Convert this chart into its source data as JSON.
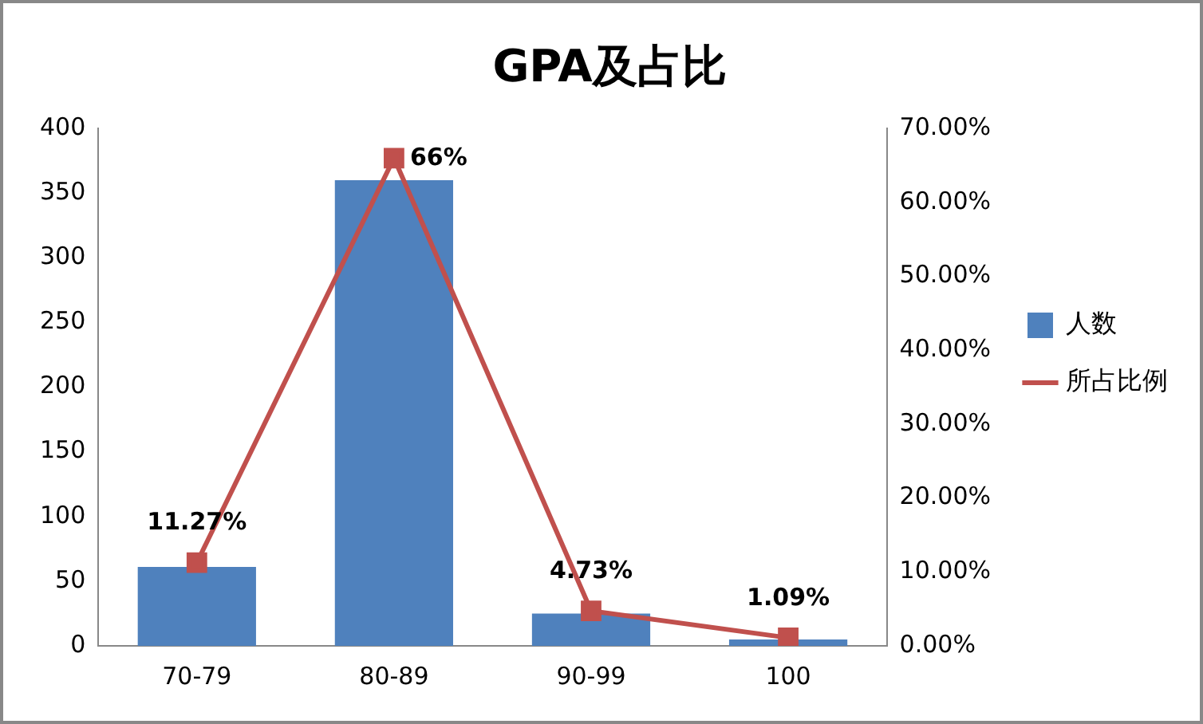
{
  "chart_data": {
    "type": "bar",
    "title": "GPA及占比",
    "categories": [
      "70-79",
      "80-89",
      "90-99",
      "100"
    ],
    "series": [
      {
        "name": "人数",
        "color": "#4f81bd",
        "values": [
          61,
          360,
          25,
          5
        ]
      },
      {
        "name": "所占比例",
        "type": "line",
        "axis": "y2",
        "color": "#c0504d",
        "values": [
          11.27,
          66,
          4.73,
          1.09
        ],
        "value_labels": [
          "11.27%",
          "66%",
          "4.73%",
          "1.09%"
        ]
      }
    ],
    "ylim": [
      0,
      400
    ],
    "yticks": [
      0,
      50,
      100,
      150,
      200,
      250,
      300,
      350,
      400
    ],
    "y2lim": [
      0,
      70
    ],
    "y2ticks": [
      {
        "value": 0,
        "label": "0.00%"
      },
      {
        "value": 10,
        "label": "10.00%"
      },
      {
        "value": 20,
        "label": "20.00%"
      },
      {
        "value": 30,
        "label": "30.00%"
      },
      {
        "value": 40,
        "label": "40.00%"
      },
      {
        "value": 50,
        "label": "50.00%"
      },
      {
        "value": 60,
        "label": "60.00%"
      },
      {
        "value": 70,
        "label": "70.00%"
      }
    ],
    "grid": false,
    "legend": "right",
    "marker": "square",
    "line_style": "solid"
  }
}
